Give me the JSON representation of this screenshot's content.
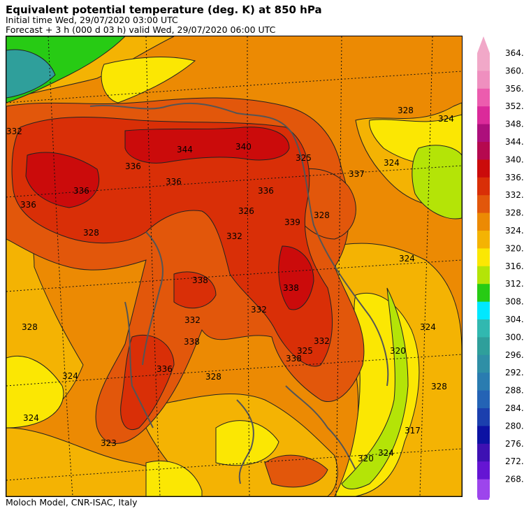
{
  "header": {
    "title": "Equivalent potential temperature (deg. K) at 850 hPa",
    "initial": "Initial time  Wed, 29/07/2020  03:00 UTC",
    "forecast": "Forecast  +   3 h  (000 d 03 h)  valid Wed, 29/07/2020 06:00 UTC"
  },
  "footer": {
    "credit": "Moloch Model, CNR-ISAC, Italy"
  },
  "colorbar": {
    "labels": [
      "364.",
      "360.",
      "356.",
      "352.",
      "348.",
      "344.",
      "340.",
      "336.",
      "332.",
      "328.",
      "324.",
      "320.",
      "316.",
      "312.",
      "308.",
      "304.",
      "300.",
      "296.",
      "292.",
      "288.",
      "284.",
      "280.",
      "276.",
      "272.",
      "268."
    ],
    "colors": [
      "#f1a8c8",
      "#ef8fbf",
      "#ec5cae",
      "#db2a9a",
      "#ad0f7c",
      "#b5094f",
      "#cb0b0b",
      "#d92f07",
      "#e2570b",
      "#ec8a03",
      "#f4b303",
      "#fbe703",
      "#b4e407",
      "#27cb14",
      "#00e8ff",
      "#31b8b0",
      "#2f9f9b",
      "#2f8fa6",
      "#2a7cb0",
      "#2463b5",
      "#1b3fae",
      "#0c12a3",
      "#3e11b3",
      "#6515d3",
      "#9d45ec"
    ]
  },
  "contour_labels": [
    "336",
    "344",
    "340",
    "325",
    "337",
    "328",
    "324",
    "332",
    "336",
    "336",
    "326",
    "339",
    "338",
    "338",
    "332",
    "338",
    "325",
    "328",
    "320",
    "317",
    "320",
    "324",
    "328",
    "323",
    "324",
    "324",
    "328",
    "324",
    "328",
    "332",
    "336",
    "338",
    "332",
    "324",
    "336",
    "336",
    "332",
    "328",
    "324"
  ]
}
